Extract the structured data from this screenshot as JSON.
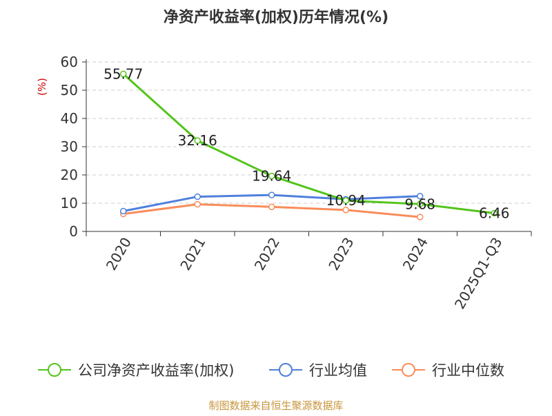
{
  "chart_data": {
    "type": "line",
    "title": "净资产收益率(加权)历年情况(%)",
    "ylabel": "(%)",
    "xlabel": "",
    "ylim": [
      0,
      60
    ],
    "yticks": [
      0,
      10,
      20,
      30,
      40,
      50,
      60
    ],
    "grid": true,
    "legend_position": "bottom",
    "categories": [
      "2020",
      "2021",
      "2022",
      "2023",
      "2024",
      "2025Q1-Q3"
    ],
    "series": [
      {
        "name": "公司净资产收益率(加权)",
        "color": "#52c41a",
        "values": [
          55.77,
          32.16,
          19.64,
          10.94,
          9.68,
          6.46
        ],
        "show_labels": true
      },
      {
        "name": "行业均值",
        "color": "#4e7fdc",
        "values": [
          7.2,
          12.3,
          12.9,
          11.4,
          12.5,
          null
        ],
        "show_labels": false
      },
      {
        "name": "行业中位数",
        "color": "#f98c5a",
        "values": [
          6.2,
          9.6,
          8.7,
          7.6,
          5.1,
          null
        ],
        "show_labels": false
      }
    ]
  },
  "footer": {
    "source": "制图数据来自恒生聚源数据库"
  }
}
